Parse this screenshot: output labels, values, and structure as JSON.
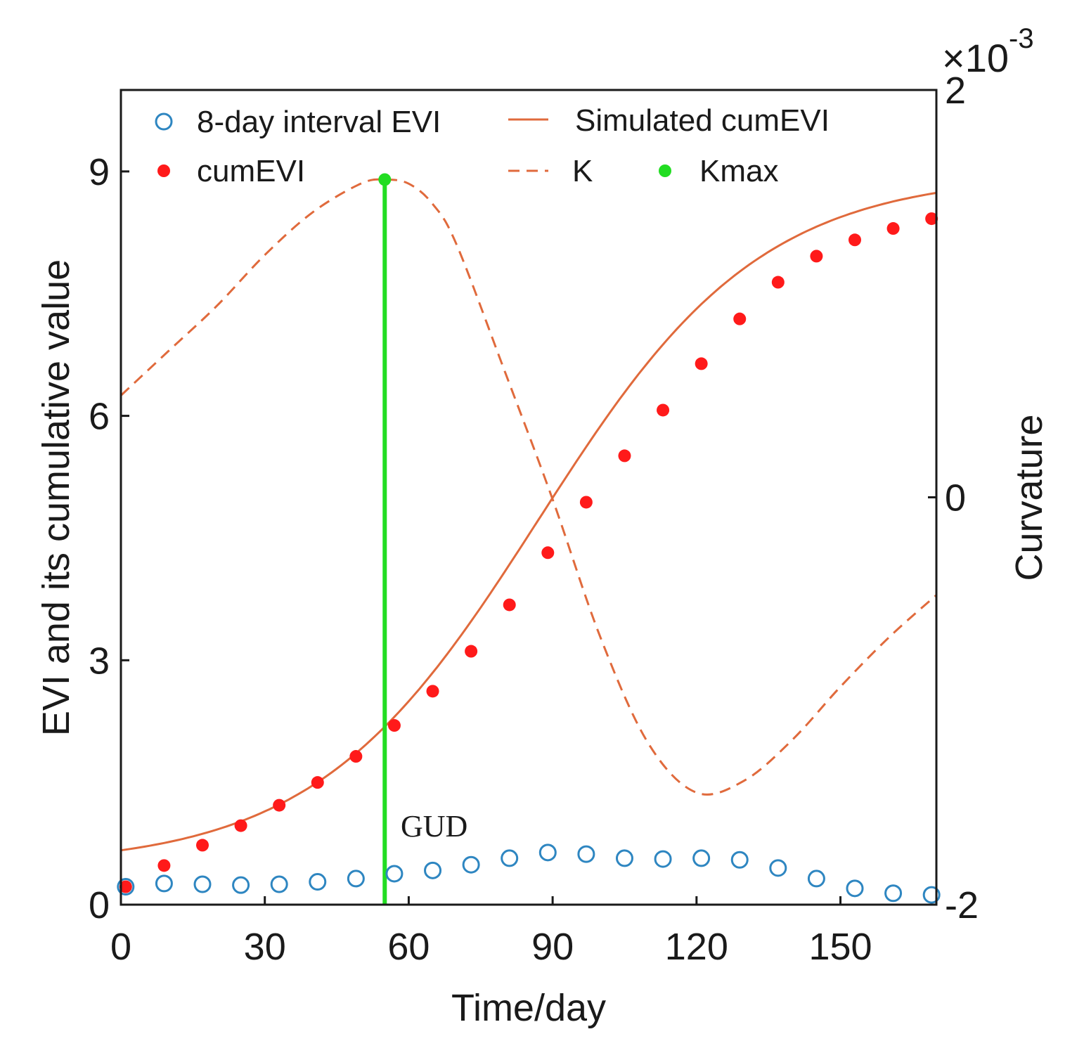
{
  "chart_data": {
    "type": "scatter",
    "xlabel": "Time/day",
    "ylabel": "EVI and its cumulative value",
    "y2label": "Curvature",
    "y2_exponent_label": "×10",
    "y2_exponent_power": "-3",
    "xlim": [
      0,
      170
    ],
    "ylim": [
      0,
      10
    ],
    "y2lim": [
      -2,
      2
    ],
    "xticks": [
      0,
      30,
      60,
      90,
      120,
      150
    ],
    "yticks": [
      0,
      3,
      6,
      9
    ],
    "y2ticks": [
      -2,
      0,
      2
    ],
    "xtick_labels": [
      "0",
      "30",
      "60",
      "90",
      "120",
      "150"
    ],
    "ytick_labels": [
      "0",
      "3",
      "6",
      "9"
    ],
    "y2tick_labels": [
      "-2",
      "0",
      "2"
    ],
    "legend": {
      "evi": "8-day interval EVI",
      "cumevi": "cumEVI",
      "simulated": "Simulated cumEVI",
      "k": "K",
      "kmax": "Kmax"
    },
    "annotation": "GUD",
    "colors": {
      "evi": "#2e86c1",
      "cumevi": "#ff1a1a",
      "simulated": "#e06a3c",
      "kmax": "#22dd22"
    },
    "series": [
      {
        "name": "8-day interval EVI",
        "axis": "left",
        "x": [
          1,
          9,
          17,
          25,
          33,
          41,
          49,
          57,
          65,
          73,
          81,
          89,
          97,
          105,
          113,
          121,
          129,
          137,
          145,
          153,
          161,
          169
        ],
        "y": [
          0.22,
          0.26,
          0.25,
          0.24,
          0.25,
          0.28,
          0.32,
          0.38,
          0.42,
          0.49,
          0.57,
          0.64,
          0.62,
          0.57,
          0.56,
          0.57,
          0.55,
          0.45,
          0.32,
          0.2,
          0.14,
          0.12
        ]
      },
      {
        "name": "cumEVI",
        "axis": "left",
        "x": [
          1,
          9,
          17,
          25,
          33,
          41,
          49,
          57,
          65,
          73,
          81,
          89,
          97,
          105,
          113,
          121,
          129,
          137,
          145,
          153,
          161,
          169
        ],
        "y": [
          0.22,
          0.48,
          0.73,
          0.97,
          1.22,
          1.5,
          1.82,
          2.2,
          2.62,
          3.11,
          3.68,
          4.32,
          4.94,
          5.51,
          6.07,
          6.64,
          7.19,
          7.64,
          7.96,
          8.16,
          8.3,
          8.42
        ]
      },
      {
        "name": "Simulated cumEVI",
        "axis": "left",
        "model": "logistic",
        "a": 0.47,
        "c": 8.5,
        "r": 0.043,
        "t0": 87
      },
      {
        "name": "K",
        "axis": "right",
        "x": [
          0,
          10,
          20,
          30,
          40,
          50,
          55,
          60,
          65,
          70,
          80,
          90,
          100,
          110,
          120,
          130,
          140,
          150,
          160,
          170
        ],
        "y": [
          0.5,
          0.72,
          0.94,
          1.19,
          1.4,
          1.54,
          1.56,
          1.54,
          1.44,
          1.24,
          0.62,
          -0.01,
          -0.69,
          -1.21,
          -1.45,
          -1.39,
          -1.19,
          -0.93,
          -0.69,
          -0.48
        ]
      },
      {
        "name": "Kmax",
        "axis": "right",
        "x": [
          55
        ],
        "y": [
          1.56
        ]
      }
    ]
  }
}
